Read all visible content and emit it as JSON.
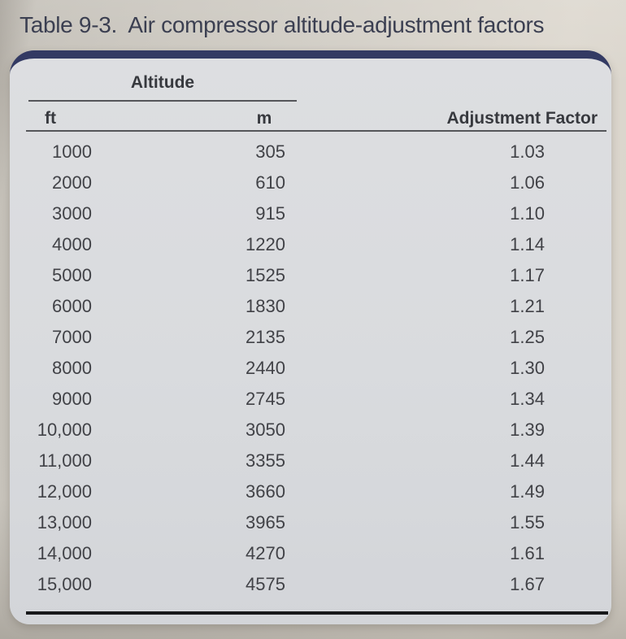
{
  "page": {
    "title": "Table 9-3.  Air compressor altitude-adjustment factors"
  },
  "table": {
    "group_header": "Altitude",
    "sub_headers": {
      "ft": "ft",
      "m": "m",
      "factor": "Adjustment Factor"
    },
    "rows": [
      {
        "ft": "1000",
        "m": "305",
        "factor": "1.03"
      },
      {
        "ft": "2000",
        "m": "610",
        "factor": "1.06"
      },
      {
        "ft": "3000",
        "m": "915",
        "factor": "1.10"
      },
      {
        "ft": "4000",
        "m": "1220",
        "factor": "1.14"
      },
      {
        "ft": "5000",
        "m": "1525",
        "factor": "1.17"
      },
      {
        "ft": "6000",
        "m": "1830",
        "factor": "1.21"
      },
      {
        "ft": "7000",
        "m": "2135",
        "factor": "1.25"
      },
      {
        "ft": "8000",
        "m": "2440",
        "factor": "1.30"
      },
      {
        "ft": "9000",
        "m": "2745",
        "factor": "1.34"
      },
      {
        "ft": "10,000",
        "m": "3050",
        "factor": "1.39"
      },
      {
        "ft": "11,000",
        "m": "3355",
        "factor": "1.44"
      },
      {
        "ft": "12,000",
        "m": "3660",
        "factor": "1.49"
      },
      {
        "ft": "13,000",
        "m": "3965",
        "factor": "1.55"
      },
      {
        "ft": "14,000",
        "m": "4270",
        "factor": "1.61"
      },
      {
        "ft": "15,000",
        "m": "4575",
        "factor": "1.67"
      }
    ]
  },
  "colors": {
    "accent_navy": "#333a63",
    "title_text": "#3b3f51",
    "header_text": "#37393e",
    "text": "#414247",
    "rule": "#55565a",
    "bottom_rule": "#17181a",
    "card_background": "#d9dbde",
    "page_background": "#cfcbc3"
  }
}
